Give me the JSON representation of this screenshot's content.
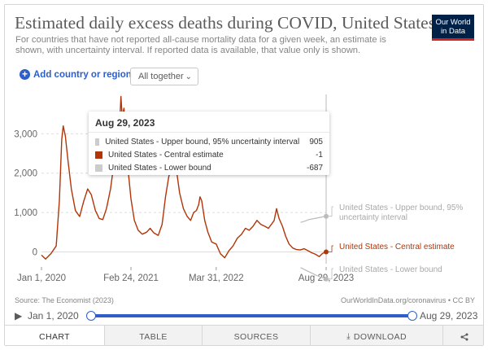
{
  "header": {
    "title": "Estimated daily excess deaths during COVID, United States",
    "subtitle": "For countries that have not reported all-cause mortality data for a given week, an estimate is shown, with uncertainty interval. If reported data is available, that value only is shown.",
    "logo_line1": "Our World",
    "logo_line2": "in Data"
  },
  "controls": {
    "add_country_label": "Add country or region",
    "facet_select_value": "All together",
    "plus_icon": "plus-circle-icon",
    "chevron_icon": "chevron-down-icon"
  },
  "colors": {
    "central": "#b13507",
    "bounds": "#bbbbbb",
    "accent": "#2c5ecc",
    "grid": "#dddddd"
  },
  "chart_data": {
    "type": "line",
    "title": "Estimated daily excess deaths during COVID, United States",
    "xlabel": "",
    "ylabel": "",
    "ylim": [
      -300,
      4000
    ],
    "yticks": [
      0,
      1000,
      2000,
      3000
    ],
    "ytick_labels": [
      "0",
      "1,000",
      "2,000",
      "3,000"
    ],
    "xticks": [
      "Jan 1, 2020",
      "Feb 24, 2021",
      "Mar 31, 2022",
      "Aug 29, 2023"
    ],
    "xtick_dates": [
      "2020-01-01",
      "2021-02-24",
      "2022-03-31",
      "2023-08-29"
    ],
    "xlim": [
      "2020-01-01",
      "2023-08-29"
    ],
    "series": [
      {
        "name": "United States - Upper bound, 95% uncertainty interval",
        "role": "upper",
        "x": [
          "2023-05-01",
          "2023-05-20",
          "2023-06-08",
          "2023-06-27",
          "2023-07-16",
          "2023-08-04",
          "2023-08-29"
        ],
        "y": [
          750,
          780,
          820,
          840,
          860,
          880,
          905
        ]
      },
      {
        "name": "United States - Central estimate",
        "role": "central",
        "x": [
          "2020-01-01",
          "2020-01-20",
          "2020-02-15",
          "2020-03-10",
          "2020-03-25",
          "2020-04-05",
          "2020-04-12",
          "2020-04-22",
          "2020-05-05",
          "2020-05-20",
          "2020-06-08",
          "2020-06-28",
          "2020-07-18",
          "2020-08-05",
          "2020-08-22",
          "2020-09-10",
          "2020-09-28",
          "2020-10-15",
          "2020-11-01",
          "2020-11-20",
          "2020-12-05",
          "2020-12-20",
          "2021-01-01",
          "2021-01-08",
          "2021-01-14",
          "2021-01-22",
          "2021-02-01",
          "2021-02-12",
          "2021-02-24",
          "2021-03-12",
          "2021-03-30",
          "2021-04-18",
          "2021-05-08",
          "2021-05-25",
          "2021-06-12",
          "2021-07-02",
          "2021-07-20",
          "2021-08-05",
          "2021-08-20",
          "2021-09-01",
          "2021-09-12",
          "2021-09-25",
          "2021-10-10",
          "2021-10-28",
          "2021-11-15",
          "2021-12-01",
          "2021-12-15",
          "2021-12-28",
          "2022-01-08",
          "2022-01-14",
          "2022-01-22",
          "2022-02-05",
          "2022-02-20",
          "2022-03-10",
          "2022-03-31",
          "2022-04-20",
          "2022-05-10",
          "2022-05-30",
          "2022-06-18",
          "2022-07-08",
          "2022-07-28",
          "2022-08-15",
          "2022-09-02",
          "2022-09-20",
          "2022-10-08",
          "2022-10-26",
          "2022-11-14",
          "2022-12-01",
          "2022-12-15",
          "2022-12-28",
          "2023-01-08",
          "2023-01-20",
          "2023-02-05",
          "2023-02-20",
          "2023-03-08",
          "2023-03-25",
          "2023-04-12",
          "2023-04-30",
          "2023-05-18",
          "2023-06-05",
          "2023-06-22",
          "2023-07-10",
          "2023-07-28",
          "2023-08-12",
          "2023-08-29"
        ],
        "y": [
          -80,
          -180,
          -40,
          150,
          1300,
          2850,
          3200,
          2950,
          2300,
          1600,
          1050,
          900,
          1300,
          1600,
          1450,
          1050,
          850,
          820,
          1100,
          1600,
          2200,
          2700,
          3150,
          3950,
          3400,
          3650,
          2900,
          2000,
          1350,
          800,
          550,
          450,
          500,
          600,
          480,
          420,
          700,
          1400,
          1900,
          2150,
          2300,
          2100,
          1500,
          1100,
          900,
          800,
          1000,
          1050,
          1200,
          1400,
          1300,
          800,
          500,
          250,
          200,
          -50,
          -150,
          30,
          150,
          350,
          450,
          600,
          550,
          650,
          800,
          700,
          650,
          600,
          700,
          800,
          1100,
          850,
          650,
          400,
          200,
          100,
          60,
          50,
          80,
          30,
          -20,
          -60,
          -120,
          -40,
          -1
        ]
      },
      {
        "name": "United States - Lower bound",
        "role": "lower",
        "x": [
          "2023-05-01",
          "2023-05-20",
          "2023-06-08",
          "2023-06-27",
          "2023-07-16",
          "2023-08-04",
          "2023-08-29"
        ],
        "y": [
          -400,
          -450,
          -500,
          -550,
          -600,
          -640,
          -687
        ]
      }
    ],
    "end_labels": [
      {
        "text": "United States - Upper bound, 95% uncertainty interval",
        "role": "upper"
      },
      {
        "text": "United States - Central estimate",
        "role": "central"
      },
      {
        "text": "United States - Lower bound",
        "role": "lower"
      }
    ]
  },
  "tooltip": {
    "date": "Aug 29, 2023",
    "rows": [
      {
        "label": "United States - Upper bound, 95% uncertainty interval",
        "value": "905",
        "color": "#cccccc"
      },
      {
        "label": "United States - Central estimate",
        "value": "-1",
        "color": "#b13507"
      },
      {
        "label": "United States - Lower bound",
        "value": "-687",
        "color": "#cccccc"
      }
    ]
  },
  "footer": {
    "source": "Source: The Economist (2023)",
    "license": "OurWorldInData.org/coronavirus • CC BY"
  },
  "timeline": {
    "start_label": "Jan 1, 2020",
    "end_label": "Aug 29, 2023",
    "play_icon": "play-icon"
  },
  "tabs": [
    {
      "label": "CHART",
      "active": true
    },
    {
      "label": "TABLE",
      "active": false
    },
    {
      "label": "SOURCES",
      "active": false
    },
    {
      "label": "DOWNLOAD",
      "active": false,
      "icon": "download-icon"
    },
    {
      "label": "",
      "active": false,
      "icon": "share-icon"
    }
  ]
}
